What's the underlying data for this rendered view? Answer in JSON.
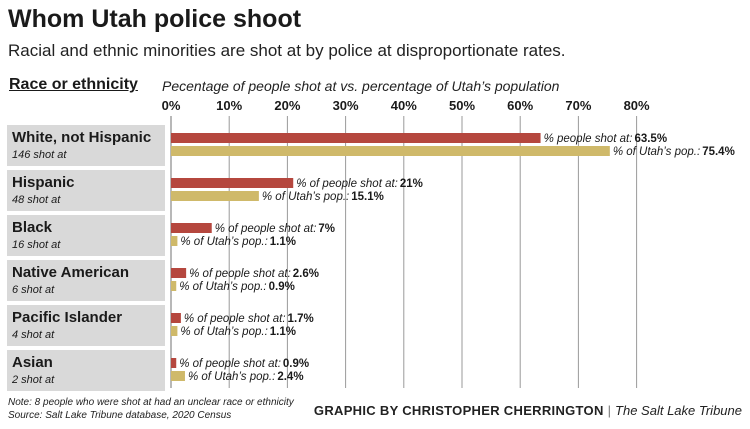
{
  "header": {
    "title": "Whom Utah police shoot",
    "subtitle": "Racial and ethnic minorities are shot at by police at disproportionate rates.",
    "column_heading": "Race or ethnicity",
    "chart_subtitle": "Pecentage of people shot at vs. percentage of Utah’s population"
  },
  "footer": {
    "note": "Note: 8 people who were shot at had an unclear race or ethnicity",
    "source": "Source: Salt Lake Tribune database, 2020 Census",
    "credit": "GRAPHIC BY CHRISTOPHER CHERRINGTON",
    "separator": "|",
    "publication": "The Salt Lake Tribune"
  },
  "colors": {
    "shot": "#b5473e",
    "population": "#cfb96a",
    "label_bg": "#d9d9d9",
    "grid": "#9a9a9a"
  },
  "chart_data": {
    "type": "bar",
    "orientation": "horizontal",
    "title": "Pecentage of people shot at vs. percentage of Utah’s population",
    "xlim": [
      0,
      80
    ],
    "xticks": [
      0,
      10,
      20,
      30,
      40,
      50,
      60,
      70,
      80
    ],
    "tick_suffix": "%",
    "series_prefixes": [
      "% people shot at:",
      "% of Utah’s pop.:"
    ],
    "categories": [
      {
        "name": "White, not Hispanic",
        "count": "146 shot at"
      },
      {
        "name": "Hispanic",
        "count": "48 shot at"
      },
      {
        "name": "Black",
        "count": "16 shot at"
      },
      {
        "name": "Native American",
        "count": "6 shot at"
      },
      {
        "name": "Pacific Islander",
        "count": "4 shot at"
      },
      {
        "name": "Asian",
        "count": "2 shot at"
      }
    ],
    "series": [
      {
        "name": "% of people shot at",
        "color": "#b5473e",
        "values": [
          63.5,
          21,
          7,
          2.6,
          1.7,
          0.9
        ],
        "prefixes": [
          "% people shot at:",
          "% of people shot at:",
          "% of people shot at:",
          "% of people shot at:",
          "% of people shot at:",
          "% of people shot at:"
        ],
        "labels": [
          "63.5%",
          "21%",
          "7%",
          "2.6%",
          "1.7%",
          "0.9%"
        ]
      },
      {
        "name": "% of Utah’s pop.",
        "color": "#cfb96a",
        "values": [
          75.4,
          15.1,
          1.1,
          0.9,
          1.1,
          2.4
        ],
        "prefixes": [
          "% of Utah’s pop.:",
          "% of Utah’s pop.:",
          "% of Utah’s pop.:",
          "% of Utah’s pop.:",
          "% of Utah’s pop.:",
          "% of Utah’s pop.:"
        ],
        "labels": [
          "75.4%",
          "15.1%",
          "1.1%",
          "0.9%",
          "1.1%",
          "2.4%"
        ]
      }
    ]
  }
}
